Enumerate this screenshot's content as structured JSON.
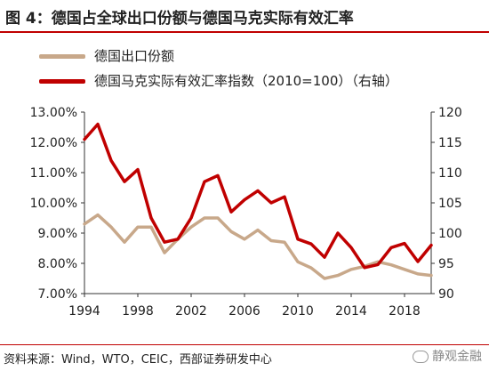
{
  "title": "图 4：德国占全球出口份额与德国马克实际有效汇率",
  "source": "资料来源：Wind，WTO，CEIC，西部证券研发中心",
  "watermark": "静观金融",
  "colors": {
    "share": "#c8a88a",
    "reer": "#c00000",
    "rule": "#c00000"
  },
  "chart_data": {
    "type": "line",
    "title": "图 4：德国占全球出口份额与德国马克实际有效汇率",
    "x": [
      1994,
      1995,
      1996,
      1997,
      1998,
      1999,
      2000,
      2001,
      2002,
      2003,
      2004,
      2005,
      2006,
      2007,
      2008,
      2009,
      2010,
      2011,
      2012,
      2013,
      2014,
      2015,
      2016,
      2017,
      2018,
      2019,
      2020
    ],
    "xticks": [
      1994,
      1998,
      2002,
      2006,
      2010,
      2014,
      2018
    ],
    "xlim": [
      1994,
      2020
    ],
    "series": [
      {
        "name": "德国出口份额",
        "axis": "left",
        "values": [
          9.3,
          9.6,
          9.2,
          8.7,
          9.2,
          9.2,
          8.35,
          8.8,
          9.2,
          9.5,
          9.5,
          9.05,
          8.8,
          9.1,
          8.75,
          8.7,
          8.05,
          7.85,
          7.5,
          7.6,
          7.8,
          7.9,
          8.05,
          7.95,
          7.8,
          7.65,
          7.6
        ]
      },
      {
        "name": "德国马克实际有效汇率指数（2010=100）（右轴）",
        "axis": "right",
        "values": [
          115.5,
          118,
          112,
          108.5,
          110.5,
          102.5,
          98.5,
          99,
          102.5,
          108.5,
          109.5,
          103.5,
          105.5,
          107,
          105,
          106,
          99,
          98.2,
          96,
          100,
          97.6,
          94.3,
          94.8,
          97.6,
          98.3,
          95.3,
          98
        ]
      }
    ],
    "yleft": {
      "lim": [
        7,
        13
      ],
      "ticks": [
        "7.00%",
        "8.00%",
        "9.00%",
        "10.00%",
        "11.00%",
        "12.00%",
        "13.00%"
      ],
      "tick_values": [
        7,
        8,
        9,
        10,
        11,
        12,
        13
      ]
    },
    "yright": {
      "lim": [
        90,
        120
      ],
      "ticks": [
        "90",
        "95",
        "100",
        "105",
        "110",
        "115",
        "120"
      ],
      "tick_values": [
        90,
        95,
        100,
        105,
        110,
        115,
        120
      ]
    },
    "grid": false,
    "legend_position": "top-left"
  }
}
